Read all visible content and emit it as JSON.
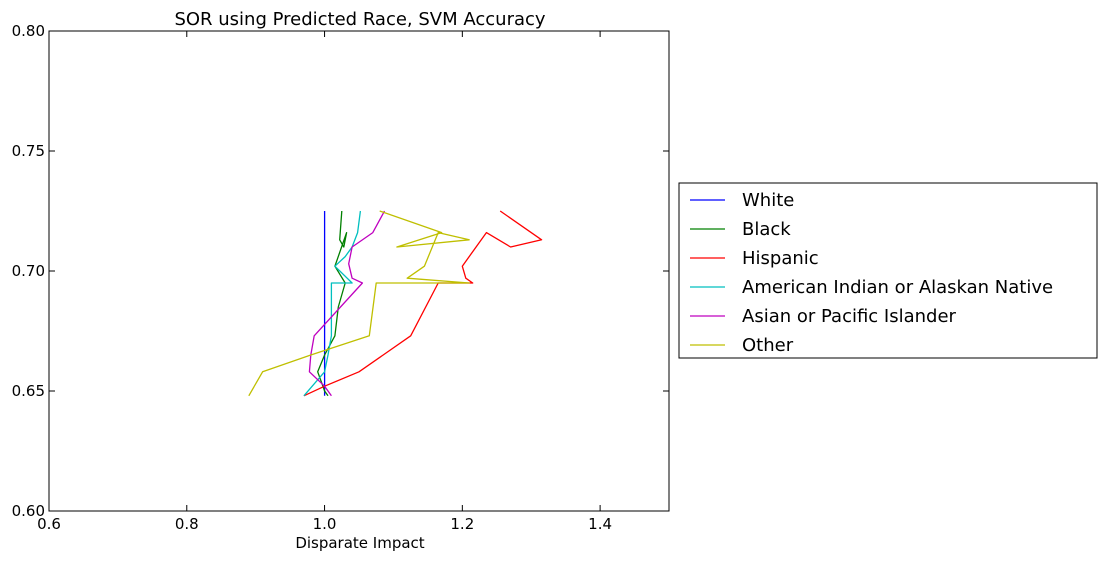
{
  "chart_data": {
    "type": "line",
    "title": "SOR using Predicted Race, SVM Accuracy",
    "xlabel": "Disparate Impact",
    "ylabel": "",
    "xlim": [
      0.6,
      1.5
    ],
    "ylim": [
      0.6,
      0.8
    ],
    "xticks": [
      "0.6",
      "0.8",
      "1.0",
      "1.2",
      "1.4"
    ],
    "yticks": [
      "0.60",
      "0.65",
      "0.70",
      "0.75",
      "0.80"
    ],
    "grid": false,
    "legend_position": "outside-right",
    "series": [
      {
        "name": "White",
        "color": "#0000ff",
        "points": [
          [
            1.0,
            0.725
          ],
          [
            1.0,
            0.716
          ],
          [
            1.0,
            0.71
          ],
          [
            1.0,
            0.716
          ],
          [
            1.0,
            0.702
          ],
          [
            1.0,
            0.695
          ],
          [
            1.0,
            0.685
          ],
          [
            1.0,
            0.673
          ],
          [
            1.0,
            0.665
          ],
          [
            1.0,
            0.658
          ],
          [
            1.0,
            0.648
          ]
        ]
      },
      {
        "name": "Black",
        "color": "#008000",
        "points": [
          [
            1.025,
            0.725
          ],
          [
            1.022,
            0.713
          ],
          [
            1.028,
            0.71
          ],
          [
            1.032,
            0.716
          ],
          [
            1.015,
            0.702
          ],
          [
            1.03,
            0.695
          ],
          [
            1.02,
            0.685
          ],
          [
            1.015,
            0.673
          ],
          [
            1.0,
            0.665
          ],
          [
            0.99,
            0.658
          ],
          [
            1.0,
            0.65
          ],
          [
            1.005,
            0.648
          ]
        ]
      },
      {
        "name": "Hispanic",
        "color": "#ff0000",
        "points": [
          [
            1.255,
            0.725
          ],
          [
            1.315,
            0.713
          ],
          [
            1.27,
            0.71
          ],
          [
            1.235,
            0.716
          ],
          [
            1.2,
            0.702
          ],
          [
            1.205,
            0.697
          ],
          [
            1.215,
            0.695
          ],
          [
            1.165,
            0.695
          ],
          [
            1.125,
            0.673
          ],
          [
            1.05,
            0.658
          ],
          [
            1.0,
            0.652
          ],
          [
            0.97,
            0.648
          ]
        ]
      },
      {
        "name": "American Indian or Alaskan Native",
        "color": "#00bfbf",
        "points": [
          [
            1.052,
            0.725
          ],
          [
            1.048,
            0.716
          ],
          [
            1.04,
            0.71
          ],
          [
            1.03,
            0.706
          ],
          [
            1.015,
            0.702
          ],
          [
            1.04,
            0.695
          ],
          [
            1.01,
            0.695
          ],
          [
            1.01,
            0.673
          ],
          [
            1.005,
            0.665
          ],
          [
            1.0,
            0.658
          ],
          [
            0.97,
            0.648
          ]
        ]
      },
      {
        "name": "Asian or Pacific Islander",
        "color": "#bf00bf",
        "points": [
          [
            1.087,
            0.725
          ],
          [
            1.07,
            0.716
          ],
          [
            1.04,
            0.71
          ],
          [
            1.035,
            0.703
          ],
          [
            1.04,
            0.697
          ],
          [
            1.055,
            0.695
          ],
          [
            0.985,
            0.673
          ],
          [
            0.98,
            0.665
          ],
          [
            0.978,
            0.658
          ],
          [
            1.0,
            0.652
          ],
          [
            1.01,
            0.648
          ]
        ]
      },
      {
        "name": "Other",
        "color": "#bfbf00",
        "points": [
          [
            1.08,
            0.725
          ],
          [
            1.17,
            0.716
          ],
          [
            1.105,
            0.71
          ],
          [
            1.21,
            0.713
          ],
          [
            1.165,
            0.716
          ],
          [
            1.145,
            0.702
          ],
          [
            1.12,
            0.697
          ],
          [
            1.21,
            0.695
          ],
          [
            1.075,
            0.695
          ],
          [
            1.065,
            0.673
          ],
          [
            0.98,
            0.665
          ],
          [
            0.91,
            0.658
          ],
          [
            0.89,
            0.648
          ]
        ]
      }
    ]
  }
}
